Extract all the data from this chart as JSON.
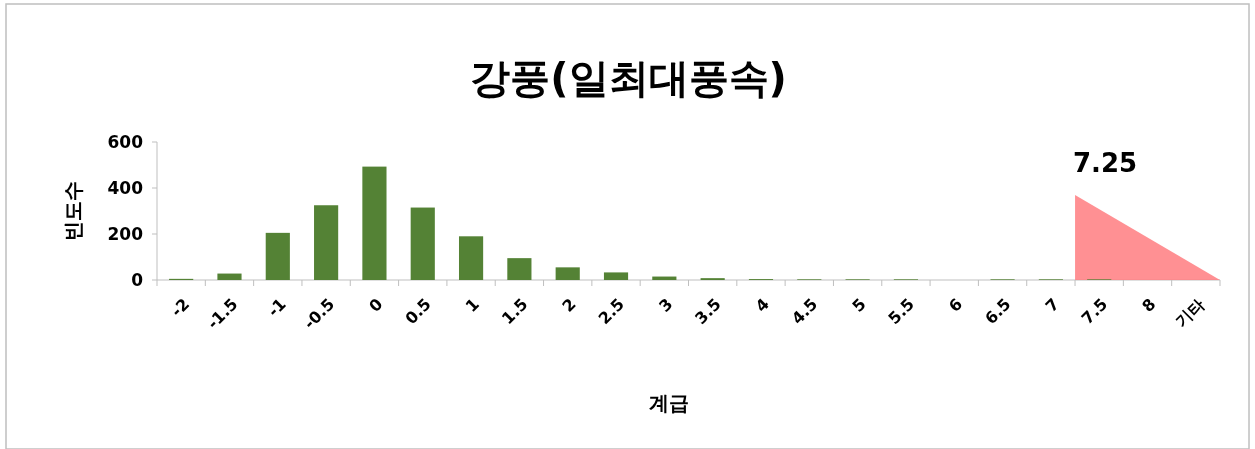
{
  "chart_data": {
    "type": "bar",
    "title": "강풍(일최대풍속)",
    "xlabel": "계급",
    "ylabel": "빈도수",
    "categories": [
      "-2",
      "-1.5",
      "-1",
      "-0.5",
      "0",
      "0.5",
      "1",
      "1.5",
      "2",
      "2.5",
      "3",
      "3.5",
      "4",
      "4.5",
      "5",
      "5.5",
      "6",
      "6.5",
      "7",
      "7.5",
      "8",
      "기타"
    ],
    "values": [
      5,
      28,
      205,
      325,
      493,
      315,
      190,
      95,
      55,
      33,
      15,
      8,
      4,
      3,
      3,
      3,
      0,
      3,
      3,
      3,
      0,
      0
    ],
    "color": "#548235",
    "ylim": [
      0,
      600
    ],
    "yticks": [
      0,
      200,
      400,
      600
    ],
    "annotations": [
      "7.25"
    ],
    "grid": false
  }
}
